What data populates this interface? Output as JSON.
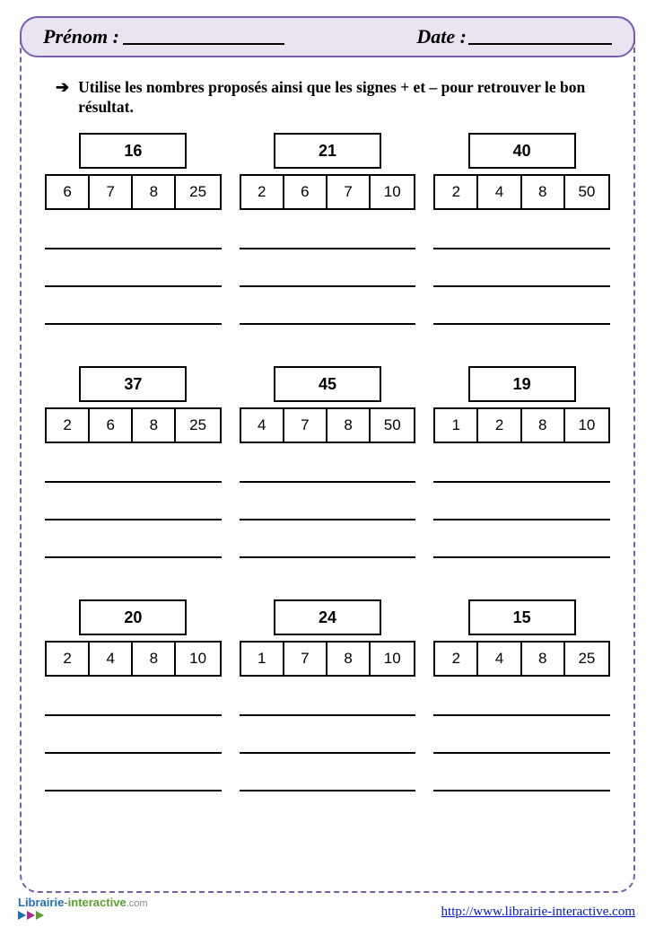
{
  "header": {
    "prenom_label": "Prénom :",
    "date_label": "Date :"
  },
  "instruction": "Utilise les nombres proposés ainsi que les signes + et – pour retrouver le bon résultat.",
  "problems": [
    {
      "target": "16",
      "numbers": [
        "6",
        "7",
        "8",
        "25"
      ]
    },
    {
      "target": "21",
      "numbers": [
        "2",
        "6",
        "7",
        "10"
      ]
    },
    {
      "target": "40",
      "numbers": [
        "2",
        "4",
        "8",
        "50"
      ]
    },
    {
      "target": "37",
      "numbers": [
        "2",
        "6",
        "8",
        "25"
      ]
    },
    {
      "target": "45",
      "numbers": [
        "4",
        "7",
        "8",
        "50"
      ]
    },
    {
      "target": "19",
      "numbers": [
        "1",
        "2",
        "8",
        "10"
      ]
    },
    {
      "target": "20",
      "numbers": [
        "2",
        "4",
        "8",
        "10"
      ]
    },
    {
      "target": "24",
      "numbers": [
        "1",
        "7",
        "8",
        "10"
      ]
    },
    {
      "target": "15",
      "numbers": [
        "2",
        "4",
        "8",
        "25"
      ]
    }
  ],
  "footer": {
    "logo_part1": "Librairie",
    "logo_dash": "-",
    "logo_part2": "interactive",
    "logo_suffix": ".com",
    "url": "http://www.librairie-interactive.com"
  }
}
